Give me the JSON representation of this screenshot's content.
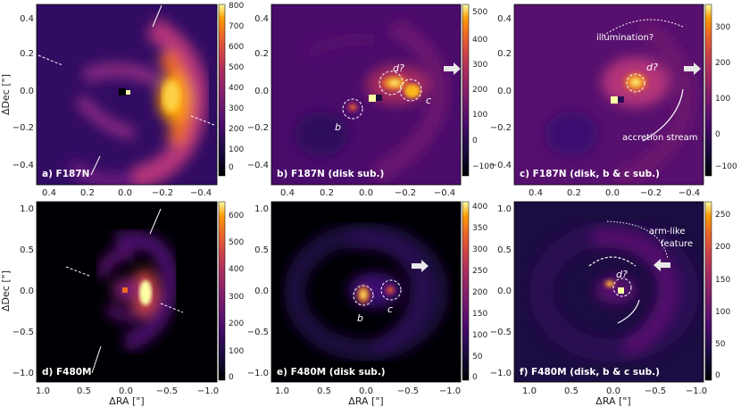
{
  "colors": {
    "map_low": "#000004",
    "map_high": "#fcffa4",
    "annotation": "#ffffff"
  },
  "axis_labels": {
    "ylabel": "ΔDec [\"]",
    "xlabel": "ΔRA [\"]"
  },
  "panels": [
    {
      "id": "a",
      "label": "a) F187N",
      "row": "top",
      "xticks": [
        "0.4",
        "0.2",
        "0.0",
        "−0.2",
        "−0.4"
      ],
      "yticks": [
        "0.4",
        "0.2",
        "0.0",
        "−0.2",
        "−0.4"
      ],
      "colorbar_ticks": [
        "800",
        "700",
        "600",
        "500",
        "400",
        "300",
        "200",
        "100",
        "0"
      ],
      "annotations": []
    },
    {
      "id": "b",
      "label": "b) F187N (disk sub.)",
      "row": "top",
      "xticks": [
        "0.4",
        "0.2",
        "0.0",
        "−0.2",
        "−0.4"
      ],
      "yticks": [
        "0.4",
        "0.2",
        "0.0",
        "−0.2",
        "−0.4"
      ],
      "colorbar_ticks": [
        "500",
        "400",
        "300",
        "200",
        "100",
        "0",
        "−100"
      ],
      "annotations": [
        "b",
        "c",
        "d?"
      ]
    },
    {
      "id": "c",
      "label": "c) F187N (disk, b & c sub.)",
      "row": "top",
      "xticks": [
        "0.4",
        "0.2",
        "0.0",
        "−0.2",
        "−0.4"
      ],
      "yticks": [
        "0.4",
        "0.2",
        "0.0",
        "−0.2",
        "−0.4"
      ],
      "colorbar_ticks": [
        "300",
        "200",
        "100",
        "0",
        "−100"
      ],
      "annotations": [
        "illumination?",
        "d?",
        "accretion stream"
      ]
    },
    {
      "id": "d",
      "label": "d) F480M",
      "row": "bottom",
      "xticks": [
        "1.0",
        "0.5",
        "0.0",
        "−0.5",
        "−1.0"
      ],
      "yticks": [
        "1.0",
        "0.5",
        "0.0",
        "−0.5",
        "−1.0"
      ],
      "colorbar_ticks": [
        "600",
        "500",
        "400",
        "300",
        "200",
        "100",
        "0"
      ],
      "annotations": []
    },
    {
      "id": "e",
      "label": "e) F480M (disk sub.)",
      "row": "bottom",
      "xticks": [
        "1.0",
        "0.5",
        "0.0",
        "−0.5",
        "−1.0"
      ],
      "yticks": [
        "1.0",
        "0.5",
        "0.0",
        "−0.5",
        "−1.0"
      ],
      "colorbar_ticks": [
        "400",
        "350",
        "300",
        "250",
        "200",
        "150",
        "100",
        "50",
        "0"
      ],
      "annotations": [
        "b",
        "c"
      ]
    },
    {
      "id": "f",
      "label": "f) F480M (disk, b & c sub.)",
      "row": "bottom",
      "xticks": [
        "1.0",
        "0.5",
        "0.0",
        "−0.5",
        "−1.0"
      ],
      "yticks": [
        "1.0",
        "0.5",
        "0.0",
        "−0.5",
        "−1.0"
      ],
      "colorbar_ticks": [
        "250",
        "200",
        "150",
        "100",
        "50",
        "0"
      ],
      "annotations": [
        "arm-like",
        "feature",
        "d?"
      ]
    }
  ]
}
